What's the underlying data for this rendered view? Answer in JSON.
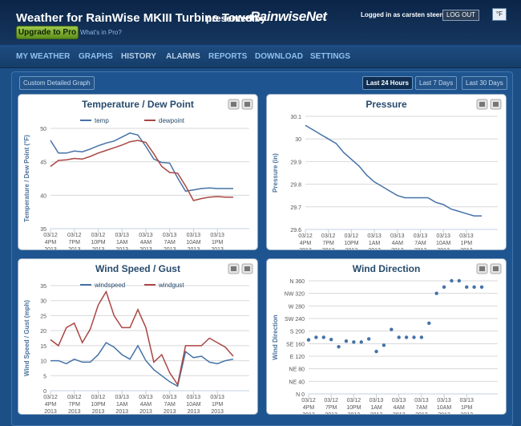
{
  "header": {
    "title": "Weather for RainWise MKIII Turbine Tower",
    "presented_by": "presented by",
    "brand": "RainwiseNet",
    "login": "Logged in as carsten steenberg",
    "logout": "LOG OUT",
    "unit": "°F",
    "upgrade": "Upgrade to Pro",
    "pro_link": "What's in Pro?"
  },
  "nav": [
    "MY WEATHER",
    "GRAPHS",
    "HISTORY",
    "ALARMS",
    "REPORTS",
    "DOWNLOAD",
    "SETTINGS"
  ],
  "toolbar": {
    "custom": "Custom Detailed Graph",
    "ranges": [
      "Last 24 Hours",
      "Last 7 Days",
      "Last 30 Days"
    ]
  },
  "charts": [
    {
      "type": "line",
      "title": "Temperature / Dew Point",
      "y_label": "Temperature / Dew Point (°F)",
      "categories": [
        [
          "03/12",
          "4PM",
          "2013"
        ],
        null,
        null,
        [
          "03/12",
          "7PM",
          "2013"
        ],
        null,
        null,
        [
          "03/12",
          "10PM",
          "2013"
        ],
        null,
        null,
        [
          "03/13",
          "1AM",
          "2013"
        ],
        null,
        null,
        [
          "03/13",
          "4AM",
          "2013"
        ],
        null,
        null,
        [
          "03/13",
          "7AM",
          "2013"
        ],
        null,
        null,
        [
          "03/13",
          "10AM",
          "2013"
        ],
        null,
        null,
        [
          "03/13",
          "1PM",
          "2013"
        ],
        null,
        null
      ],
      "series": [
        {
          "name": "temp",
          "color": "#4572a7",
          "values": [
            48.2,
            46.3,
            46.3,
            46.6,
            46.5,
            46.9,
            47.4,
            47.8,
            48.1,
            48.7,
            49.3,
            49.0,
            47.3,
            45.4,
            44.9,
            44.8,
            42.6,
            40.6,
            40.8,
            41.0,
            41.1,
            41.0,
            41.0,
            41.0
          ]
        },
        {
          "name": "dewpoint",
          "color": "#aa4643",
          "values": [
            44.3,
            45.2,
            45.3,
            45.5,
            45.4,
            45.8,
            46.3,
            46.7,
            47.1,
            47.5,
            48.0,
            48.2,
            47.9,
            46.2,
            44.3,
            43.4,
            43.3,
            41.4,
            39.2,
            39.5,
            39.7,
            39.8,
            39.7,
            39.7
          ]
        }
      ],
      "ylim": [
        35,
        50
      ],
      "yticks": [
        35,
        40,
        45,
        50
      ],
      "grid": true
    },
    {
      "type": "line",
      "title": "Pressure",
      "y_label": "Pressure (in)",
      "categories": [
        [
          "03/12",
          "4PM",
          "2013"
        ],
        null,
        null,
        [
          "03/12",
          "7PM",
          "2013"
        ],
        null,
        null,
        [
          "03/12",
          "10PM",
          "2013"
        ],
        null,
        null,
        [
          "03/13",
          "1AM",
          "2013"
        ],
        null,
        null,
        [
          "03/13",
          "4AM",
          "2013"
        ],
        null,
        null,
        [
          "03/13",
          "7AM",
          "2013"
        ],
        null,
        null,
        [
          "03/13",
          "10AM",
          "2013"
        ],
        null,
        null,
        [
          "03/13",
          "1PM",
          "2013"
        ],
        null,
        null
      ],
      "values": [
        30.06,
        30.04,
        30.02,
        30.0,
        29.98,
        29.94,
        29.91,
        29.88,
        29.84,
        29.81,
        29.79,
        29.77,
        29.75,
        29.74,
        29.74,
        29.74,
        29.74,
        29.72,
        29.71,
        29.69,
        29.68,
        29.67,
        29.66,
        29.66
      ],
      "color": "#4572a7",
      "ylim": [
        29.6,
        30.1
      ],
      "yticks": [
        29.6,
        29.7,
        29.8,
        29.9,
        30,
        30.1
      ],
      "grid": true
    },
    {
      "type": "line",
      "title": "Wind Speed / Gust",
      "y_label": "Wind Speed / Gust (mph)",
      "categories": [
        [
          "03/12",
          "4PM",
          "2013"
        ],
        null,
        null,
        [
          "03/12",
          "7PM",
          "2013"
        ],
        null,
        null,
        [
          "03/12",
          "10PM",
          "2013"
        ],
        null,
        null,
        [
          "03/13",
          "1AM",
          "2013"
        ],
        null,
        null,
        [
          "03/13",
          "4AM",
          "2013"
        ],
        null,
        null,
        [
          "03/13",
          "7AM",
          "2013"
        ],
        null,
        null,
        [
          "03/13",
          "10AM",
          "2013"
        ],
        null,
        null,
        [
          "03/13",
          "1PM",
          "2013"
        ],
        null,
        null
      ],
      "series": [
        {
          "name": "windspeed",
          "color": "#4572a7",
          "values": [
            10,
            10,
            9,
            10.5,
            9.5,
            9.5,
            12,
            16,
            14.5,
            12,
            10.5,
            15,
            10,
            7,
            5,
            3,
            1.5,
            13,
            11,
            11.5,
            9.5,
            9,
            10,
            10.5
          ]
        },
        {
          "name": "windgust",
          "color": "#aa4643",
          "values": [
            17,
            15,
            21,
            22.5,
            16,
            20.5,
            28.5,
            33,
            25,
            21,
            21,
            27,
            21,
            9.5,
            12,
            6,
            2,
            15,
            15,
            15,
            17.5,
            16,
            14.5,
            11.5
          ]
        }
      ],
      "ylim": [
        0,
        35
      ],
      "yticks": [
        0,
        5,
        10,
        15,
        20,
        25,
        30,
        35
      ],
      "grid": true
    },
    {
      "type": "scatter",
      "title": "Wind Direction",
      "y_label": "Wind Direction",
      "categories": [
        [
          "03/12",
          "4PM",
          "2013"
        ],
        null,
        null,
        [
          "03/12",
          "7PM",
          "2013"
        ],
        null,
        null,
        [
          "03/12",
          "10PM",
          "2013"
        ],
        null,
        null,
        [
          "03/13",
          "1AM",
          "2013"
        ],
        null,
        null,
        [
          "03/13",
          "4AM",
          "2013"
        ],
        null,
        null,
        [
          "03/13",
          "7AM",
          "2013"
        ],
        null,
        null,
        [
          "03/13",
          "10AM",
          "2013"
        ],
        null,
        null,
        [
          "03/13",
          "1PM",
          "2013"
        ],
        null,
        null
      ],
      "values": [
        172,
        180,
        180,
        173,
        150,
        168,
        165,
        165,
        175,
        135,
        155,
        205,
        180,
        180,
        180,
        180,
        225,
        320,
        340,
        360,
        360,
        340,
        340,
        340
      ],
      "color": "#4572a7",
      "ylim": [
        0,
        360
      ],
      "yticks": [
        {
          "value": 0,
          "label": "N 0"
        },
        {
          "value": 40,
          "label": "NE 40"
        },
        {
          "value": 80,
          "label": "NE 80"
        },
        {
          "value": 120,
          "label": "E 120"
        },
        {
          "value": 160,
          "label": "SE 160"
        },
        {
          "value": 200,
          "label": "S 200"
        },
        {
          "value": 240,
          "label": "SW 240"
        },
        {
          "value": 280,
          "label": "W 280"
        },
        {
          "value": 320,
          "label": "NW 320"
        },
        {
          "value": 360,
          "label": "N 360"
        }
      ],
      "grid": true
    }
  ]
}
